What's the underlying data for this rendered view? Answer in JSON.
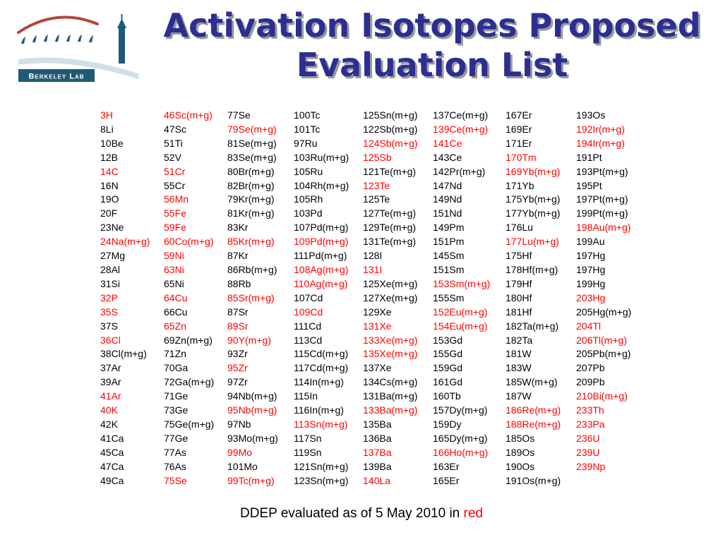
{
  "logo": {
    "text": "Berkeley Lab"
  },
  "title": {
    "line1": "Activation Isotopes Proposed",
    "line2": "Evaluation List"
  },
  "colors": {
    "title": "#2b2f91",
    "highlight": "#ff0000",
    "normal": "#000000"
  },
  "columns": [
    {
      "items": [
        {
          "t": "3H",
          "r": 1
        },
        {
          "t": "8Li",
          "r": 0
        },
        {
          "t": "10Be",
          "r": 0
        },
        {
          "t": "12B",
          "r": 0
        },
        {
          "t": "14C",
          "r": 1
        },
        {
          "t": "16N",
          "r": 0
        },
        {
          "t": "19O",
          "r": 0
        },
        {
          "t": "20F",
          "r": 0
        },
        {
          "t": "23Ne",
          "r": 0
        },
        {
          "t": "24Na(m+g)",
          "r": 1
        },
        {
          "t": "27Mg",
          "r": 0
        },
        {
          "t": "28Al",
          "r": 0
        },
        {
          "t": "31Si",
          "r": 0
        },
        {
          "t": "32P",
          "r": 1
        },
        {
          "t": "35S",
          "r": 1
        },
        {
          "t": "37S",
          "r": 0
        },
        {
          "t": "36Cl",
          "r": 1
        },
        {
          "t": "38Cl(m+g)",
          "r": 0
        },
        {
          "t": "37Ar",
          "r": 0
        },
        {
          "t": "39Ar",
          "r": 0
        },
        {
          "t": "41Ar",
          "r": 1
        },
        {
          "t": "40K",
          "r": 1
        },
        {
          "t": "42K",
          "r": 0
        },
        {
          "t": "41Ca",
          "r": 0
        },
        {
          "t": "45Ca",
          "r": 0
        },
        {
          "t": "47Ca",
          "r": 0
        },
        {
          "t": "49Ca",
          "r": 0
        }
      ]
    },
    {
      "items": [
        {
          "t": "46Sc(m+g)",
          "r": 1
        },
        {
          "t": "47Sc",
          "r": 0
        },
        {
          "t": "51Ti",
          "r": 0
        },
        {
          "t": "52V",
          "r": 0
        },
        {
          "t": "51Cr",
          "r": 1
        },
        {
          "t": "55Cr",
          "r": 0
        },
        {
          "t": "56Mn",
          "r": 1
        },
        {
          "t": "55Fe",
          "r": 1
        },
        {
          "t": "59Fe",
          "r": 1
        },
        {
          "t": "60Co(m+g)",
          "r": 1
        },
        {
          "t": "59Ni",
          "r": 1
        },
        {
          "t": "63Ni",
          "r": 1
        },
        {
          "t": "65Ni",
          "r": 0
        },
        {
          "t": "64Cu",
          "r": 1
        },
        {
          "t": "66Cu",
          "r": 0
        },
        {
          "t": "65Zn",
          "r": 1
        },
        {
          "t": "69Zn(m+g)",
          "r": 0
        },
        {
          "t": "71Zn",
          "r": 0
        },
        {
          "t": "70Ga",
          "r": 0
        },
        {
          "t": "72Ga(m+g)",
          "r": 0
        },
        {
          "t": "71Ge",
          "r": 0
        },
        {
          "t": "73Ge",
          "r": 0
        },
        {
          "t": "75Ge(m+g)",
          "r": 0
        },
        {
          "t": "77Ge",
          "r": 0
        },
        {
          "t": "77As",
          "r": 0
        },
        {
          "t": "76As",
          "r": 0
        },
        {
          "t": "75Se",
          "r": 1
        }
      ]
    },
    {
      "items": [
        {
          "t": "77Se",
          "r": 0
        },
        {
          "t": "79Se(m+g)",
          "r": 1
        },
        {
          "t": "81Se(m+g)",
          "r": 0
        },
        {
          "t": "83Se(m+g)",
          "r": 0
        },
        {
          "t": "80Br(m+g)",
          "r": 0
        },
        {
          "t": "82Br(m+g)",
          "r": 0
        },
        {
          "t": "79Kr(m+g)",
          "r": 0
        },
        {
          "t": "81Kr(m+g)",
          "r": 0
        },
        {
          "t": "83Kr",
          "r": 0
        },
        {
          "t": "85Kr(m+g)",
          "r": 1
        },
        {
          "t": "87Kr",
          "r": 0
        },
        {
          "t": "86Rb(m+g)",
          "r": 0
        },
        {
          "t": "88Rb",
          "r": 0
        },
        {
          "t": "85Sr(m+g)",
          "r": 1
        },
        {
          "t": "87Sr",
          "r": 0
        },
        {
          "t": "89Sr",
          "r": 1
        },
        {
          "t": "90Y(m+g)",
          "r": 1
        },
        {
          "t": "93Zr",
          "r": 0
        },
        {
          "t": "95Zr",
          "r": 1
        },
        {
          "t": "97Zr",
          "r": 0
        },
        {
          "t": "94Nb(m+g)",
          "r": 0
        },
        {
          "t": "95Nb(m+g)",
          "r": 1
        },
        {
          "t": "97Nb",
          "r": 0
        },
        {
          "t": "93Mo(m+g)",
          "r": 0
        },
        {
          "t": "99Mo",
          "r": 1
        },
        {
          "t": "101Mo",
          "r": 0
        },
        {
          "t": "99Tc(m+g)",
          "r": 1
        }
      ]
    },
    {
      "items": [
        {
          "t": "100Tc",
          "r": 0
        },
        {
          "t": "101Tc",
          "r": 0
        },
        {
          "t": "97Ru",
          "r": 0
        },
        {
          "t": "103Ru(m+g)",
          "r": 0
        },
        {
          "t": "105Ru",
          "r": 0
        },
        {
          "t": "104Rh(m+g)",
          "r": 0
        },
        {
          "t": "105Rh",
          "r": 0
        },
        {
          "t": "103Pd",
          "r": 0
        },
        {
          "t": "107Pd(m+g)",
          "r": 0
        },
        {
          "t": "109Pd(m+g)",
          "r": 1
        },
        {
          "t": "111Pd(m+g)",
          "r": 0
        },
        {
          "t": "108Ag(m+g)",
          "r": 1
        },
        {
          "t": "110Ag(m+g)",
          "r": 1
        },
        {
          "t": "107Cd",
          "r": 0
        },
        {
          "t": "109Cd",
          "r": 1
        },
        {
          "t": "111Cd",
          "r": 0
        },
        {
          "t": "113Cd",
          "r": 0
        },
        {
          "t": "115Cd(m+g)",
          "r": 0
        },
        {
          "t": "117Cd(m+g)",
          "r": 0
        },
        {
          "t": "114In(m+g)",
          "r": 0
        },
        {
          "t": "115In",
          "r": 0
        },
        {
          "t": "116In(m+g)",
          "r": 0
        },
        {
          "t": "113Sn(m+g)",
          "r": 1
        },
        {
          "t": "117Sn",
          "r": 0
        },
        {
          "t": "119Sn",
          "r": 0
        },
        {
          "t": "121Sn(m+g)",
          "r": 0
        },
        {
          "t": "123Sn(m+g)",
          "r": 0
        }
      ]
    },
    {
      "items": [
        {
          "t": "125Sn(m+g)",
          "r": 0
        },
        {
          "t": "122Sb(m+g)",
          "r": 0
        },
        {
          "t": "124Sb(m+g)",
          "r": 1
        },
        {
          "t": "125Sb",
          "r": 1
        },
        {
          "t": "121Te(m+g)",
          "r": 0
        },
        {
          "t": "123Te",
          "r": 1
        },
        {
          "t": "125Te",
          "r": 0
        },
        {
          "t": "127Te(m+g)",
          "r": 0
        },
        {
          "t": "129Te(m+g)",
          "r": 0
        },
        {
          "t": "131Te(m+g)",
          "r": 0
        },
        {
          "t": "128I",
          "r": 0
        },
        {
          "t": "131I",
          "r": 1
        },
        {
          "t": "125Xe(m+g)",
          "r": 0
        },
        {
          "t": "127Xe(m+g)",
          "r": 0
        },
        {
          "t": "129Xe",
          "r": 0
        },
        {
          "t": "131Xe",
          "r": 1
        },
        {
          "t": "133Xe(m+g)",
          "r": 1
        },
        {
          "t": "135Xe(m+g)",
          "r": 1
        },
        {
          "t": "137Xe",
          "r": 0
        },
        {
          "t": "134Cs(m+g)",
          "r": 0
        },
        {
          "t": "131Ba(m+g)",
          "r": 0
        },
        {
          "t": "133Ba(m+g)",
          "r": 1
        },
        {
          "t": "135Ba",
          "r": 0
        },
        {
          "t": "136Ba",
          "r": 0
        },
        {
          "t": "137Ba",
          "r": 1
        },
        {
          "t": "139Ba",
          "r": 0
        },
        {
          "t": "140La",
          "r": 1
        }
      ]
    },
    {
      "items": [
        {
          "t": "137Ce(m+g)",
          "r": 0
        },
        {
          "t": "139Ce(m+g)",
          "r": 1
        },
        {
          "t": "141Ce",
          "r": 1
        },
        {
          "t": "143Ce",
          "r": 0
        },
        {
          "t": "142Pr(m+g)",
          "r": 0
        },
        {
          "t": "147Nd",
          "r": 0
        },
        {
          "t": "149Nd",
          "r": 0
        },
        {
          "t": "151Nd",
          "r": 0
        },
        {
          "t": "149Pm",
          "r": 0
        },
        {
          "t": "151Pm",
          "r": 0
        },
        {
          "t": "145Sm",
          "r": 0
        },
        {
          "t": "151Sm",
          "r": 0
        },
        {
          "t": "153Sm(m+g)",
          "r": 1
        },
        {
          "t": "155Sm",
          "r": 0
        },
        {
          "t": "152Eu(m+g)",
          "r": 1
        },
        {
          "t": "154Eu(m+g)",
          "r": 1
        },
        {
          "t": "153Gd",
          "r": 0
        },
        {
          "t": "155Gd",
          "r": 0
        },
        {
          "t": "159Gd",
          "r": 0
        },
        {
          "t": "161Gd",
          "r": 0
        },
        {
          "t": "160Tb",
          "r": 0
        },
        {
          "t": "157Dy(m+g)",
          "r": 0
        },
        {
          "t": "159Dy",
          "r": 0
        },
        {
          "t": "165Dy(m+g)",
          "r": 0
        },
        {
          "t": "166Ho(m+g)",
          "r": 1
        },
        {
          "t": "163Er",
          "r": 0
        },
        {
          "t": "165Er",
          "r": 0
        }
      ]
    },
    {
      "items": [
        {
          "t": "167Er",
          "r": 0
        },
        {
          "t": "169Er",
          "r": 0
        },
        {
          "t": "171Er",
          "r": 0
        },
        {
          "t": "170Tm",
          "r": 1
        },
        {
          "t": "169Yb(m+g)",
          "r": 1
        },
        {
          "t": "171Yb",
          "r": 0
        },
        {
          "t": "175Yb(m+g)",
          "r": 0
        },
        {
          "t": "177Yb(m+g)",
          "r": 0
        },
        {
          "t": "176Lu",
          "r": 0
        },
        {
          "t": "177Lu(m+g)",
          "r": 1
        },
        {
          "t": "175Hf",
          "r": 0
        },
        {
          "t": "178Hf(m+g)",
          "r": 0
        },
        {
          "t": "179Hf",
          "r": 0
        },
        {
          "t": "180Hf",
          "r": 0
        },
        {
          "t": "181Hf",
          "r": 0
        },
        {
          "t": "182Ta(m+g)",
          "r": 0
        },
        {
          "t": "182Ta",
          "r": 0
        },
        {
          "t": "181W",
          "r": 0
        },
        {
          "t": "183W",
          "r": 0
        },
        {
          "t": "185W(m+g)",
          "r": 0
        },
        {
          "t": "187W",
          "r": 0
        },
        {
          "t": "186Re(m+g)",
          "r": 1
        },
        {
          "t": "188Re(m+g)",
          "r": 1
        },
        {
          "t": "185Os",
          "r": 0
        },
        {
          "t": "189Os",
          "r": 0
        },
        {
          "t": "190Os",
          "r": 0
        },
        {
          "t": "191Os(m+g)",
          "r": 0
        }
      ]
    },
    {
      "items": [
        {
          "t": "193Os",
          "r": 0
        },
        {
          "t": "192Ir(m+g)",
          "r": 1
        },
        {
          "t": "194Ir(m+g)",
          "r": 1
        },
        {
          "t": "191Pt",
          "r": 0
        },
        {
          "t": "193Pt(m+g)",
          "r": 0
        },
        {
          "t": "195Pt",
          "r": 0
        },
        {
          "t": "197Pt(m+g)",
          "r": 0
        },
        {
          "t": "199Pt(m+g)",
          "r": 0
        },
        {
          "t": "198Au(m+g)",
          "r": 1
        },
        {
          "t": "199Au",
          "r": 0
        },
        {
          "t": "197Hg",
          "r": 0
        },
        {
          "t": "197Hg",
          "r": 0
        },
        {
          "t": "199Hg",
          "r": 0
        },
        {
          "t": "203Hg",
          "r": 1
        },
        {
          "t": "205Hg(m+g)",
          "r": 0
        },
        {
          "t": "204Tl",
          "r": 1
        },
        {
          "t": "206Tl(m+g)",
          "r": 1
        },
        {
          "t": "205Pb(m+g)",
          "r": 0
        },
        {
          "t": "207Pb",
          "r": 0
        },
        {
          "t": "209Pb",
          "r": 0
        },
        {
          "t": "210Bi(m+g)",
          "r": 1
        },
        {
          "t": "233Th",
          "r": 1
        },
        {
          "t": "233Pa",
          "r": 1
        },
        {
          "t": "236U",
          "r": 1
        },
        {
          "t": "239U",
          "r": 1
        },
        {
          "t": "239Np",
          "r": 1
        }
      ]
    }
  ],
  "footnote": {
    "text": "DDEP evaluated as of 5 May 2010 in ",
    "highlight": "red"
  }
}
